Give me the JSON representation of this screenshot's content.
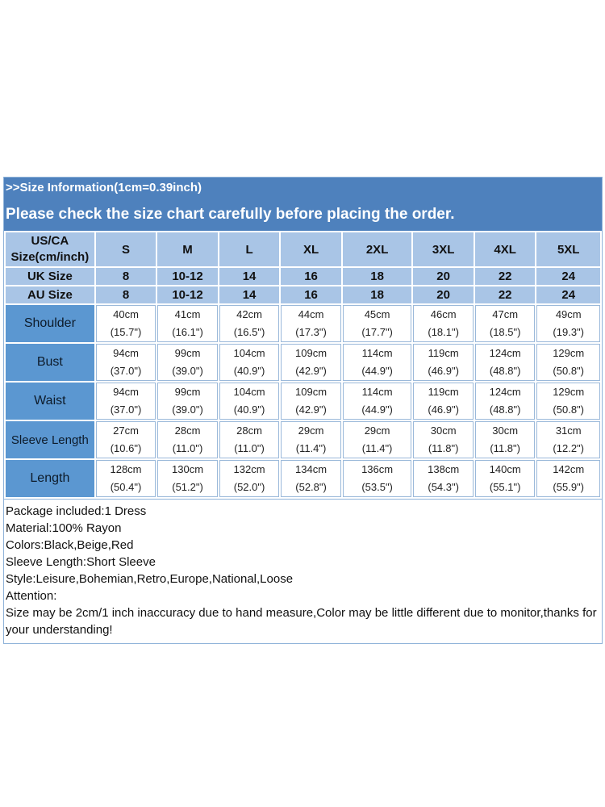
{
  "banner": {
    "title": ">>Size  Information(1cm=0.39inch)",
    "subtitle": "Please check the size chart carefully before placing the order."
  },
  "table": {
    "header_label": [
      "US/CA",
      "Size(cm/inch)"
    ],
    "sizes": [
      "S",
      "M",
      "L",
      "XL",
      "2XL",
      "3XL",
      "4XL",
      "5XL"
    ],
    "uk": {
      "label": "UK Size",
      "values": [
        "8",
        "10-12",
        "14",
        "16",
        "18",
        "20",
        "22",
        "24"
      ]
    },
    "au": {
      "label": "AU Size",
      "values": [
        "8",
        "10-12",
        "14",
        "16",
        "18",
        "20",
        "22",
        "24"
      ]
    },
    "rows": [
      {
        "label": "Shoulder",
        "cm": [
          "40cm",
          "41cm",
          "42cm",
          "44cm",
          "45cm",
          "46cm",
          "47cm",
          "49cm"
        ],
        "inch": [
          "(15.7\")",
          "(16.1\")",
          "(16.5\")",
          "(17.3\")",
          "(17.7\")",
          "(18.1\")",
          "(18.5\")",
          "(19.3\")"
        ]
      },
      {
        "label": "Bust",
        "cm": [
          "94cm",
          "99cm",
          "104cm",
          "109cm",
          "114cm",
          "119cm",
          "124cm",
          "129cm"
        ],
        "inch": [
          "(37.0\")",
          "(39.0\")",
          "(40.9\")",
          "(42.9\")",
          "(44.9\")",
          "(46.9\")",
          "(48.8\")",
          "(50.8\")"
        ]
      },
      {
        "label": "Waist",
        "cm": [
          "94cm",
          "99cm",
          "104cm",
          "109cm",
          "114cm",
          "119cm",
          "124cm",
          "129cm"
        ],
        "inch": [
          "(37.0\")",
          "(39.0\")",
          "(40.9\")",
          "(42.9\")",
          "(44.9\")",
          "(46.9\")",
          "(48.8\")",
          "(50.8\")"
        ]
      },
      {
        "label": "Sleeve Length",
        "cm": [
          "27cm",
          "28cm",
          "28cm",
          "29cm",
          "29cm",
          "30cm",
          "30cm",
          "31cm"
        ],
        "inch": [
          "(10.6\")",
          "(11.0\")",
          "(11.0\")",
          "(11.4\")",
          "(11.4\")",
          "(11.8\")",
          "(11.8\")",
          "(12.2\")"
        ]
      },
      {
        "label": "Length",
        "cm": [
          "128cm",
          "130cm",
          "132cm",
          "134cm",
          "136cm",
          "138cm",
          "140cm",
          "142cm"
        ],
        "inch": [
          "(50.4\")",
          "(51.2\")",
          "(52.0\")",
          "(52.8\")",
          "(53.5\")",
          "(54.3\")",
          "(55.1\")",
          "(55.9\")"
        ]
      }
    ]
  },
  "notes": [
    "Package included:1  Dress",
    "Material:100% Rayon",
    "Colors:Black,Beige,Red",
    "Sleeve Length:Short Sleeve",
    "Style:Leisure,Bohemian,Retro,Europe,National,Loose",
    "Attention:",
    "Size may be 2cm/1 inch inaccuracy due to hand measure,Color may be little different due to monitor,thanks for your understanding!"
  ]
}
